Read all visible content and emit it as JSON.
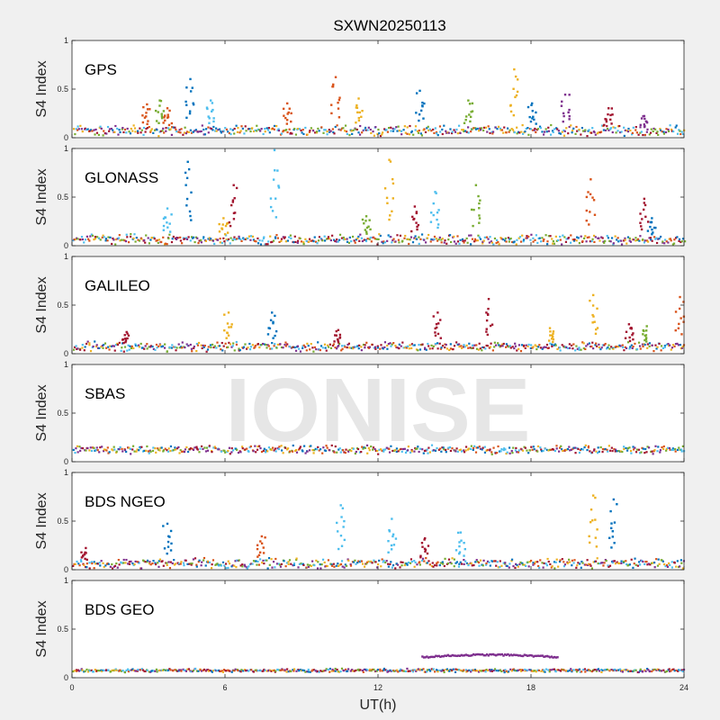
{
  "chart_data": {
    "type": "scatter",
    "title": "SXWN20250113",
    "xlabel": "UT(h)",
    "ylabel": "S4 Index",
    "xlim": [
      0,
      24
    ],
    "ylim": [
      0,
      1
    ],
    "xticks": [
      "0",
      "6",
      "12",
      "18",
      "24"
    ],
    "yticks": [
      "0",
      "0.5",
      "1"
    ],
    "watermark": "IONISE",
    "series_colors": [
      "#0072BD",
      "#D95319",
      "#EDB120",
      "#7E2F8E",
      "#77AC30",
      "#4DBEEE",
      "#A2142F"
    ],
    "panels": [
      {
        "name": "GPS",
        "baseline": {
          "level": 0.07,
          "jitter": 0.045
        },
        "spikes": [
          {
            "x": 2.9,
            "y": 0.34,
            "color": "#D95319"
          },
          {
            "x": 3.4,
            "y": 0.38,
            "color": "#77AC30"
          },
          {
            "x": 3.7,
            "y": 0.3,
            "color": "#D95319"
          },
          {
            "x": 4.6,
            "y": 0.6,
            "color": "#0072BD"
          },
          {
            "x": 5.4,
            "y": 0.38,
            "color": "#4DBEEE"
          },
          {
            "x": 8.4,
            "y": 0.35,
            "color": "#D95319"
          },
          {
            "x": 10.3,
            "y": 0.62,
            "color": "#D95319"
          },
          {
            "x": 11.2,
            "y": 0.4,
            "color": "#EDB120"
          },
          {
            "x": 13.6,
            "y": 0.48,
            "color": "#0072BD"
          },
          {
            "x": 15.5,
            "y": 0.38,
            "color": "#77AC30"
          },
          {
            "x": 17.3,
            "y": 0.7,
            "color": "#EDB120"
          },
          {
            "x": 18.0,
            "y": 0.35,
            "color": "#0072BD"
          },
          {
            "x": 19.3,
            "y": 0.44,
            "color": "#7E2F8E"
          },
          {
            "x": 21.0,
            "y": 0.3,
            "color": "#A2142F"
          },
          {
            "x": 22.4,
            "y": 0.22,
            "color": "#7E2F8E"
          }
        ]
      },
      {
        "name": "GLONASS",
        "baseline": {
          "level": 0.06,
          "jitter": 0.045
        },
        "spikes": [
          {
            "x": 3.7,
            "y": 0.38,
            "color": "#4DBEEE"
          },
          {
            "x": 4.5,
            "y": 0.86,
            "color": "#0072BD"
          },
          {
            "x": 5.9,
            "y": 0.28,
            "color": "#EDB120"
          },
          {
            "x": 6.3,
            "y": 0.62,
            "color": "#A2142F"
          },
          {
            "x": 7.9,
            "y": 0.98,
            "color": "#4DBEEE"
          },
          {
            "x": 11.5,
            "y": 0.3,
            "color": "#77AC30"
          },
          {
            "x": 12.4,
            "y": 0.88,
            "color": "#EDB120"
          },
          {
            "x": 13.4,
            "y": 0.4,
            "color": "#A2142F"
          },
          {
            "x": 14.2,
            "y": 0.55,
            "color": "#4DBEEE"
          },
          {
            "x": 15.8,
            "y": 0.62,
            "color": "#77AC30"
          },
          {
            "x": 20.3,
            "y": 0.68,
            "color": "#D95319"
          },
          {
            "x": 22.4,
            "y": 0.48,
            "color": "#A2142F"
          },
          {
            "x": 22.7,
            "y": 0.28,
            "color": "#0072BD"
          }
        ]
      },
      {
        "name": "GALILEO",
        "baseline": {
          "level": 0.07,
          "jitter": 0.04
        },
        "spikes": [
          {
            "x": 2.1,
            "y": 0.22,
            "color": "#A2142F"
          },
          {
            "x": 6.1,
            "y": 0.42,
            "color": "#EDB120"
          },
          {
            "x": 7.8,
            "y": 0.42,
            "color": "#0072BD"
          },
          {
            "x": 10.4,
            "y": 0.24,
            "color": "#A2142F"
          },
          {
            "x": 14.3,
            "y": 0.42,
            "color": "#A2142F"
          },
          {
            "x": 16.3,
            "y": 0.56,
            "color": "#A2142F"
          },
          {
            "x": 18.7,
            "y": 0.26,
            "color": "#EDB120"
          },
          {
            "x": 20.4,
            "y": 0.6,
            "color": "#EDB120"
          },
          {
            "x": 21.8,
            "y": 0.3,
            "color": "#A2142F"
          },
          {
            "x": 22.5,
            "y": 0.28,
            "color": "#77AC30"
          },
          {
            "x": 23.8,
            "y": 0.58,
            "color": "#D95319"
          }
        ]
      },
      {
        "name": "SBAS",
        "baseline": {
          "level": 0.12,
          "jitter": 0.035
        },
        "spikes": []
      },
      {
        "name": "BDS NGEO",
        "baseline": {
          "level": 0.06,
          "jitter": 0.045
        },
        "spikes": [
          {
            "x": 0.5,
            "y": 0.22,
            "color": "#A2142F"
          },
          {
            "x": 3.7,
            "y": 0.47,
            "color": "#0072BD"
          },
          {
            "x": 7.4,
            "y": 0.34,
            "color": "#D95319"
          },
          {
            "x": 10.5,
            "y": 0.66,
            "color": "#4DBEEE"
          },
          {
            "x": 12.5,
            "y": 0.52,
            "color": "#4DBEEE"
          },
          {
            "x": 13.8,
            "y": 0.32,
            "color": "#A2142F"
          },
          {
            "x": 15.2,
            "y": 0.38,
            "color": "#4DBEEE"
          },
          {
            "x": 20.4,
            "y": 0.76,
            "color": "#EDB120"
          },
          {
            "x": 21.2,
            "y": 0.72,
            "color": "#0072BD"
          }
        ]
      },
      {
        "name": "BDS GEO",
        "baseline": {
          "level": 0.07,
          "jitter": 0.015
        },
        "spikes": [],
        "arc": {
          "x_start": 13.7,
          "x_end": 19.0,
          "y": 0.21,
          "color": "#7E2F8E"
        }
      }
    ]
  }
}
